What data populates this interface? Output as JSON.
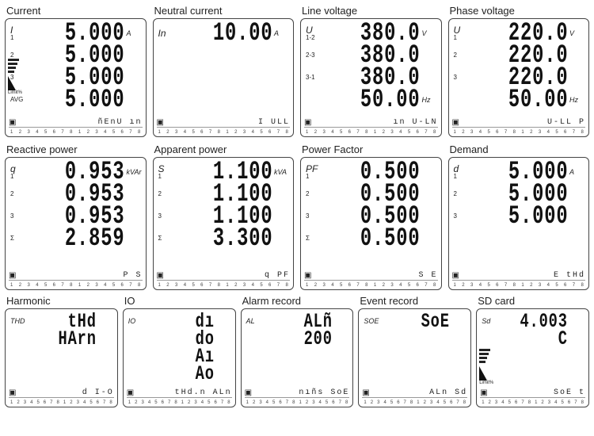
{
  "colors": {
    "border": "#444444",
    "text": "#222222",
    "bg": "#ffffff"
  },
  "panels_top": [
    {
      "title": "Current",
      "left_symbol": "I",
      "rows": [
        {
          "idx": "1",
          "value": "5.000",
          "unit": "A"
        },
        {
          "idx": "2",
          "value": "5.000",
          "unit": ""
        },
        {
          "idx": "3",
          "value": "5.000",
          "unit": ""
        },
        {
          "idx": "AVG",
          "value": "5.000",
          "unit": ""
        }
      ],
      "strip": "ñEnU   ın",
      "bargraph": true
    },
    {
      "title": "Neutral current",
      "left_symbol": "In",
      "rows": [
        {
          "idx": "",
          "value": "10.00",
          "unit": "A"
        },
        {
          "idx": "",
          "value": "",
          "unit": ""
        },
        {
          "idx": "",
          "value": "",
          "unit": ""
        },
        {
          "idx": "",
          "value": "",
          "unit": ""
        }
      ],
      "strip": "I        ULL"
    },
    {
      "title": "Line voltage",
      "left_symbol": "U",
      "rows": [
        {
          "idx": "1-2",
          "value": "380.0",
          "unit": "V"
        },
        {
          "idx": "2-3",
          "value": "380.0",
          "unit": ""
        },
        {
          "idx": "3-1",
          "value": "380.0",
          "unit": ""
        },
        {
          "idx": "",
          "value": "50.00",
          "unit": "Hz"
        }
      ],
      "strip": "ın    U-LN"
    },
    {
      "title": "Phase voltage",
      "left_symbol": "U",
      "rows": [
        {
          "idx": "1",
          "value": "220.0",
          "unit": "V"
        },
        {
          "idx": "2",
          "value": "220.0",
          "unit": ""
        },
        {
          "idx": "3",
          "value": "220.0",
          "unit": ""
        },
        {
          "idx": "",
          "value": "50.00",
          "unit": "Hz"
        }
      ],
      "strip": "U-LL     P"
    }
  ],
  "panels_mid": [
    {
      "title": "Reactive power",
      "left_symbol": "q",
      "rows": [
        {
          "idx": "1",
          "value": "0.953",
          "unit": "kVAr"
        },
        {
          "idx": "2",
          "value": "0.953",
          "unit": ""
        },
        {
          "idx": "3",
          "value": "0.953",
          "unit": ""
        },
        {
          "idx": "Σ",
          "value": "2.859",
          "unit": ""
        }
      ],
      "strip": "P     S"
    },
    {
      "title": "Apparent power",
      "left_symbol": "S",
      "rows": [
        {
          "idx": "1",
          "value": "1.100",
          "unit": "kVA"
        },
        {
          "idx": "2",
          "value": "1.100",
          "unit": ""
        },
        {
          "idx": "3",
          "value": "1.100",
          "unit": ""
        },
        {
          "idx": "Σ",
          "value": "3.300",
          "unit": ""
        }
      ],
      "strip": "q     PF"
    },
    {
      "title": "Power Factor",
      "left_symbol": "PF",
      "rows": [
        {
          "idx": "1",
          "value": "0.500",
          "unit": ""
        },
        {
          "idx": "2",
          "value": "0.500",
          "unit": ""
        },
        {
          "idx": "3",
          "value": "0.500",
          "unit": ""
        },
        {
          "idx": "Σ",
          "value": "0.500",
          "unit": ""
        }
      ],
      "strip": "S     E"
    },
    {
      "title": "Demand",
      "left_symbol": "d",
      "rows": [
        {
          "idx": "1",
          "value": "5.000",
          "unit": "A"
        },
        {
          "idx": "2",
          "value": "5.000",
          "unit": ""
        },
        {
          "idx": "3",
          "value": "5.000",
          "unit": ""
        },
        {
          "idx": "",
          "value": "",
          "unit": ""
        }
      ],
      "strip": "E     tHd"
    }
  ],
  "panels_bot": [
    {
      "title": "Harmonic",
      "left_symbol": "THD",
      "lines": [
        "tHd",
        "HArn"
      ],
      "strip": "d     I-O"
    },
    {
      "title": "IO",
      "left_symbol": "IO",
      "lines": [
        "dı",
        "do",
        "Aı",
        "Ao"
      ],
      "strip": "tHd.n   ALn"
    },
    {
      "title": "Alarm record",
      "left_symbol": "AL",
      "lines": [
        "ALñ",
        "200"
      ],
      "strip": "nıñs   SoE"
    },
    {
      "title": "Event record",
      "left_symbol": "SOE",
      "lines": [
        "SoE"
      ],
      "strip": "ALn     Sd"
    },
    {
      "title": "SD card",
      "left_symbol": "Sd",
      "lines": [
        "4.003",
        "C"
      ],
      "strip": "SoE     t",
      "bargraph": true
    }
  ],
  "tick_labels": [
    "1",
    "2",
    "3",
    "4",
    "5",
    "6",
    "7",
    "8"
  ]
}
